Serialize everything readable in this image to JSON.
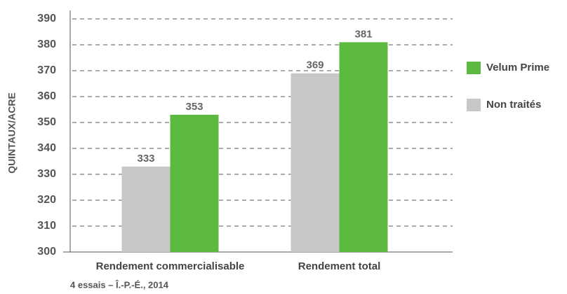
{
  "chart_data": {
    "type": "bar",
    "y_label": "QUINTAUX/ACRE",
    "footnote": "4 essais – Î.-P.-É., 2014",
    "categories": [
      "Rendement commercialisable",
      "Rendement total"
    ],
    "series": [
      {
        "name": "Non traités",
        "color": "#c8c8c8",
        "values": [
          333,
          369
        ]
      },
      {
        "name": "Velum Prime",
        "color": "#5cb940",
        "values": [
          353,
          381
        ]
      }
    ],
    "ylim": [
      300,
      390
    ],
    "yticks": [
      300,
      310,
      320,
      330,
      340,
      350,
      360,
      370,
      380,
      390
    ],
    "grid": true,
    "legend": "right"
  }
}
